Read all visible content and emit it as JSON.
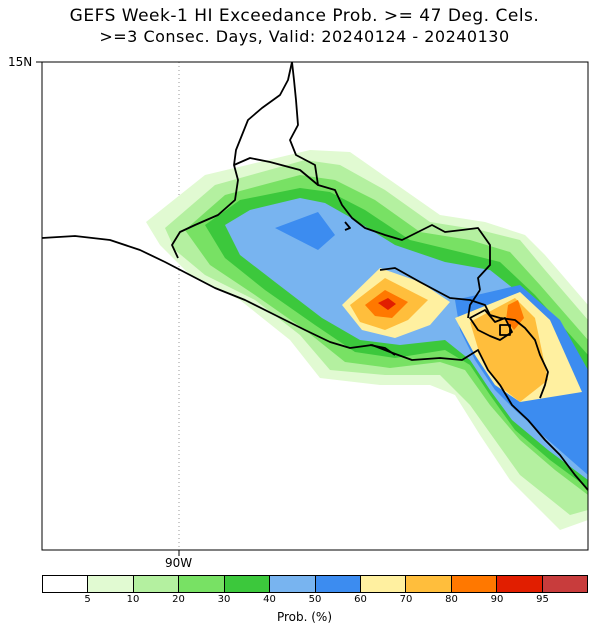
{
  "title_line1": "GEFS Week-1 HI Exceedance Prob. >= 47 Deg. Cels.",
  "title_line2": ">=3 Consec. Days, Valid: 20240124 - 20240130",
  "lat_label": "15N",
  "lon_label": "90W",
  "colorbar": {
    "title": "Prob. (%)",
    "tick_labels": [
      "5",
      "10",
      "20",
      "30",
      "40",
      "50",
      "60",
      "70",
      "80",
      "90",
      "95"
    ],
    "colors": [
      "#ffffff",
      "#e1fad2",
      "#b4f0a0",
      "#78e164",
      "#3cc83c",
      "#78b4f0",
      "#3c8cf0",
      "#fff0a0",
      "#ffbe3c",
      "#ff7800",
      "#e11e00",
      "#c83c3c"
    ]
  }
}
